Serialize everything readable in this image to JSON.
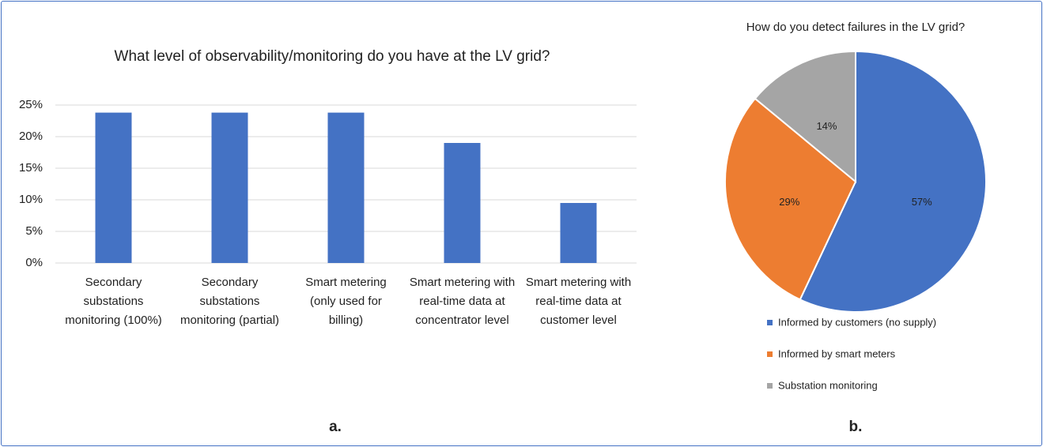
{
  "chart_data": [
    {
      "type": "bar",
      "title": "What level of observability/monitoring do you have at the LV grid?",
      "categories": [
        "Secondary substations monitoring (100%)",
        "Secondary substations monitoring (partial)",
        "Smart metering (only used for billing)",
        "Smart metering with real-time data at concentrator level",
        "Smart metering with real-time data at customer level"
      ],
      "values": [
        23.8,
        23.8,
        23.8,
        19,
        9.5
      ],
      "color": "#4472c4",
      "ylim": [
        0,
        25
      ],
      "yticks": [
        {
          "value": 0,
          "label": "0%"
        },
        {
          "value": 5,
          "label": "5%"
        },
        {
          "value": 10,
          "label": "10%"
        },
        {
          "value": 15,
          "label": "15%"
        },
        {
          "value": 20,
          "label": "20%"
        },
        {
          "value": 25,
          "label": "25%"
        }
      ],
      "grid": true,
      "caption": "a."
    },
    {
      "type": "pie",
      "title": "How do you detect failures in the LV grid?",
      "categories": [
        "Informed by customers (no supply)",
        "Informed by smart meters",
        "Substation monitoring"
      ],
      "values": [
        57,
        29,
        14
      ],
      "value_labels": [
        "57%",
        "29%",
        "14%"
      ],
      "colors": [
        "#4472c4",
        "#ed7d31",
        "#a5a5a5"
      ],
      "legend": "bottom",
      "caption": "b."
    }
  ]
}
